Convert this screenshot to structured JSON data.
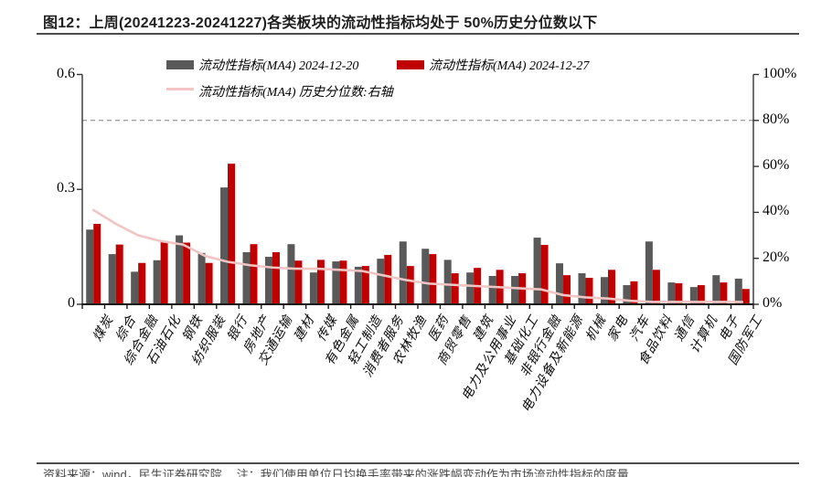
{
  "header": {
    "title": "图12：上周(20241223-20241227)各类板块的流动性指标均处于 50%历史分位数以下"
  },
  "footer": {
    "source": "资料来源：wind，民生证券研究院",
    "note": "注：我们使用单位日均换手率带来的涨跌幅变动作为市场流动性指标的度量"
  },
  "colors": {
    "bar_prev": "#595959",
    "bar_curr": "#c00000",
    "percentile_line": "#f2c5c5",
    "reference_dashed": "#808080",
    "axis": "#333333",
    "title_text": "#1f1f1f"
  },
  "chart_data": {
    "type": "bar",
    "subtype": "grouped bars with line on secondary axis",
    "title": "图12：上周(20241223-20241227)各类板块的流动性指标均处于 50%历史分位数以下",
    "categories": [
      "煤炭",
      "综合",
      "综合金融",
      "石油石化",
      "钢铁",
      "纺织服装",
      "银行",
      "房地产",
      "交通运输",
      "建材",
      "传媒",
      "有色金属",
      "轻工制造",
      "消费者服务",
      "农林牧渔",
      "医药",
      "商贸零售",
      "建筑",
      "电力及公用事业",
      "基础化工",
      "非银行金融",
      "电力设备及新能源",
      "机械",
      "家电",
      "汽车",
      "食品饮料",
      "通信",
      "计算机",
      "电子",
      "国防军工"
    ],
    "series": [
      {
        "name": "流动性指标(MA4) 2024-12-20",
        "type": "bar",
        "axis": "left",
        "color": "#595959",
        "values": [
          0.195,
          0.131,
          0.085,
          0.115,
          0.18,
          0.134,
          0.305,
          0.136,
          0.124,
          0.157,
          0.083,
          0.112,
          0.098,
          0.119,
          0.164,
          0.145,
          0.116,
          0.083,
          0.074,
          0.074,
          0.174,
          0.107,
          0.081,
          0.071,
          0.05,
          0.164,
          0.057,
          0.045,
          0.076,
          0.067
        ]
      },
      {
        "name": "流动性指标(MA4) 2024-12-27",
        "type": "bar",
        "axis": "left",
        "color": "#c00000",
        "values": [
          0.21,
          0.156,
          0.108,
          0.165,
          0.161,
          0.108,
          0.367,
          0.157,
          0.136,
          0.114,
          0.116,
          0.114,
          0.1,
          0.129,
          0.1,
          0.131,
          0.081,
          0.095,
          0.09,
          0.081,
          0.155,
          0.076,
          0.069,
          0.09,
          0.06,
          0.09,
          0.055,
          0.05,
          0.057,
          0.04
        ]
      },
      {
        "name": "流动性指标(MA4) 历史分位数:右轴",
        "type": "line",
        "axis": "right",
        "color": "#f2c5c5",
        "values_pct": [
          41,
          35,
          30,
          27.5,
          26,
          21,
          18.5,
          17,
          16,
          15.5,
          15.5,
          15,
          14.5,
          12.5,
          10.5,
          9,
          8.5,
          8,
          7.5,
          7,
          6.5,
          4,
          3,
          2.5,
          1.5,
          1,
          1,
          1,
          1,
          1
        ]
      }
    ],
    "left_axis": {
      "max": 0.6,
      "values": [
        0,
        0.3,
        0.6
      ],
      "ticks": [
        "0",
        "0.3",
        "0.6"
      ]
    },
    "right_axis": {
      "max": 100,
      "values": [
        0,
        20,
        40,
        60,
        80,
        100
      ],
      "ticks": [
        "0%",
        "20%",
        "40%",
        "60%",
        "80%",
        "100%"
      ]
    },
    "reference_line": {
      "axis": "right",
      "value": 80,
      "style": "dashed",
      "color": "#808080"
    },
    "legend_position": "top",
    "grid": false
  }
}
